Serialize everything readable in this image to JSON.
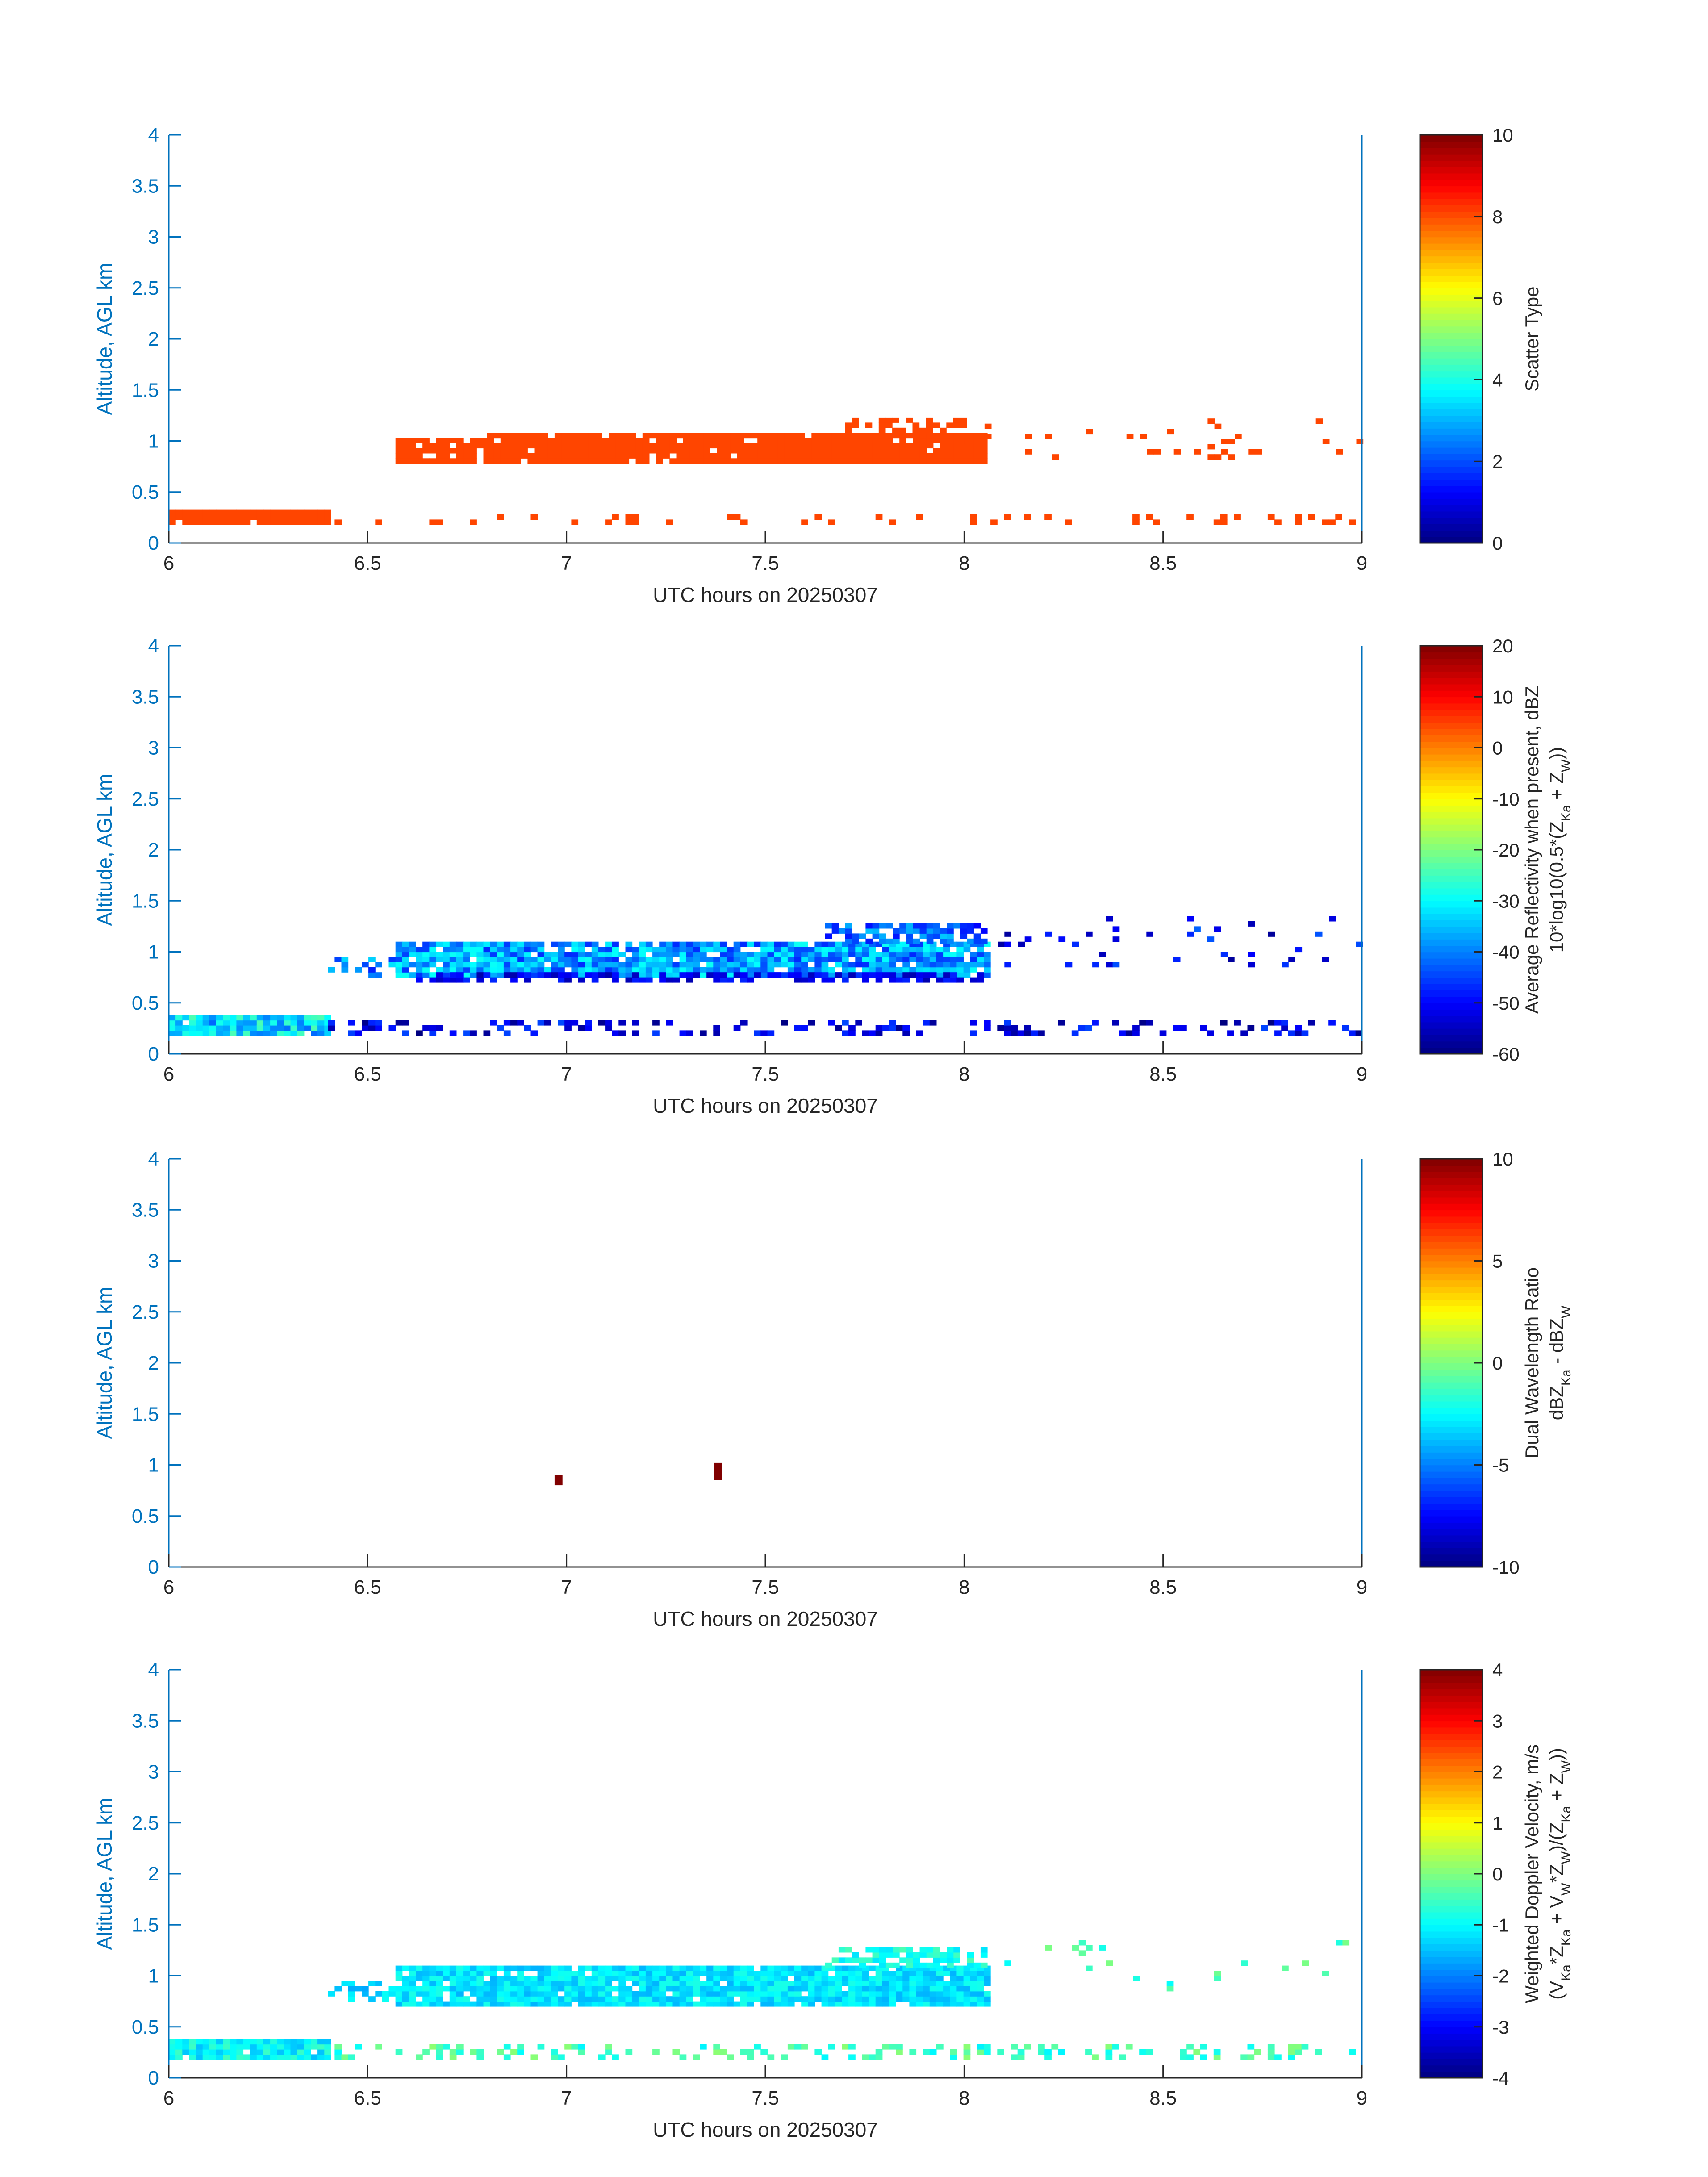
{
  "colors": {
    "axis_blue": "#0072bd",
    "text_dark": "#262626",
    "scatter_orange": "#ff4500",
    "dwr_darkred": "#800000"
  },
  "chart_data": [
    {
      "type": "heatmap",
      "xlabel": "UTC hours on 20250307",
      "ylabel": "Altitude, AGL km",
      "xlim": [
        6,
        9
      ],
      "ylim": [
        0,
        4
      ],
      "xticks": [
        "6",
        "6.5",
        "7",
        "7.5",
        "8",
        "8.5",
        "9"
      ],
      "yticks": [
        "0",
        "0.5",
        "1",
        "1.5",
        "2",
        "2.5",
        "3",
        "3.5",
        "4"
      ],
      "colorbar": {
        "label_lines": [
          "Scatter Type"
        ],
        "lim": [
          0,
          10
        ],
        "ticks": [
          "0",
          "2",
          "4",
          "6",
          "8",
          "10"
        ]
      },
      "layers": [
        {
          "x0": 6.0,
          "x1": 6.4,
          "ylow": 0.18,
          "yhigh": 0.32,
          "value": 8,
          "density": 0.95
        },
        {
          "x0": 6.4,
          "x1": 9.0,
          "ylow": 0.18,
          "yhigh": 0.28,
          "value": 8,
          "density": 0.18
        },
        {
          "x0": 6.57,
          "x1": 6.8,
          "ylow": 0.78,
          "yhigh": 1.0,
          "value": 8,
          "density": 0.85
        },
        {
          "x0": 6.8,
          "x1": 8.05,
          "ylow": 0.78,
          "yhigh": 1.08,
          "value": 8,
          "density": 0.93
        },
        {
          "x0": 7.7,
          "x1": 8.0,
          "ylow": 1.08,
          "yhigh": 1.2,
          "value": 8,
          "density": 0.6
        },
        {
          "x0": 8.0,
          "x1": 9.0,
          "ylow": 0.82,
          "yhigh": 1.2,
          "value": 8,
          "density": 0.05
        }
      ]
    },
    {
      "type": "heatmap",
      "xlabel": "UTC hours on 20250307",
      "ylabel": "Altitude, AGL km",
      "xlim": [
        6,
        9
      ],
      "ylim": [
        0,
        4
      ],
      "xticks": [
        "6",
        "6.5",
        "7",
        "7.5",
        "8",
        "8.5",
        "9"
      ],
      "yticks": [
        "0",
        "0.5",
        "1",
        "1.5",
        "2",
        "2.5",
        "3",
        "3.5",
        "4"
      ],
      "colorbar": {
        "label_lines": [
          "Average Reflectivity when present, dBZ",
          "10*log10(0.5*(Z",
          "Ka",
          " + Z",
          "W",
          "))"
        ],
        "lim": [
          -60,
          20
        ],
        "ticks": [
          "-60",
          "-50",
          "-40",
          "-30",
          "-20",
          "-10",
          "0",
          "10",
          "20"
        ]
      },
      "layers": [
        {
          "x0": 6.0,
          "x1": 6.4,
          "ylow": 0.18,
          "yhigh": 0.35,
          "value": -33,
          "spread": 9,
          "density": 0.95
        },
        {
          "x0": 6.4,
          "x1": 9.0,
          "ylow": 0.18,
          "yhigh": 0.32,
          "value": -52,
          "spread": 8,
          "density": 0.3
        },
        {
          "x0": 6.4,
          "x1": 6.6,
          "ylow": 0.75,
          "yhigh": 0.95,
          "value": -40,
          "spread": 8,
          "density": 0.35
        },
        {
          "x0": 6.57,
          "x1": 8.05,
          "ylow": 0.75,
          "yhigh": 1.08,
          "value": -38,
          "spread": 9,
          "density": 0.93
        },
        {
          "x0": 6.57,
          "x1": 8.05,
          "ylow": 0.7,
          "yhigh": 0.78,
          "value": -52,
          "spread": 5,
          "density": 0.55
        },
        {
          "x0": 7.65,
          "x1": 8.05,
          "ylow": 1.08,
          "yhigh": 1.25,
          "value": -42,
          "spread": 8,
          "density": 0.6
        },
        {
          "x0": 8.05,
          "x1": 9.0,
          "ylow": 0.85,
          "yhigh": 1.35,
          "value": -50,
          "spread": 8,
          "density": 0.05
        }
      ]
    },
    {
      "type": "heatmap",
      "xlabel": "UTC hours on 20250307",
      "ylabel": "Altitude, AGL km",
      "xlim": [
        6,
        9
      ],
      "ylim": [
        0,
        4
      ],
      "xticks": [
        "6",
        "6.5",
        "7",
        "7.5",
        "8",
        "8.5",
        "9"
      ],
      "yticks": [
        "0",
        "0.5",
        "1",
        "1.5",
        "2",
        "2.5",
        "3",
        "3.5",
        "4"
      ],
      "colorbar": {
        "label_lines": [
          "Dual Wavelength Ratio",
          "dBZ",
          "Ka",
          " - dBZ",
          "W"
        ],
        "lim": [
          -10,
          10
        ],
        "ticks": [
          "-10",
          "-5",
          "0",
          "5",
          "10"
        ]
      },
      "cells": [
        {
          "x": 6.97,
          "y": 0.8,
          "w": 0.02,
          "h": 0.1,
          "value": 10
        },
        {
          "x": 7.37,
          "y": 0.85,
          "w": 0.02,
          "h": 0.17,
          "value": 10
        }
      ]
    },
    {
      "type": "heatmap",
      "xlabel": "UTC hours on 20250307",
      "ylabel": "Altitude, AGL km",
      "xlim": [
        6,
        9
      ],
      "ylim": [
        0,
        4
      ],
      "xticks": [
        "6",
        "6.5",
        "7",
        "7.5",
        "8",
        "8.5",
        "9"
      ],
      "yticks": [
        "0",
        "0.5",
        "1",
        "1.5",
        "2",
        "2.5",
        "3",
        "3.5",
        "4"
      ],
      "colorbar": {
        "label_lines": [
          "Weighted Doppler Velocity, m/s",
          "(V",
          "Ka",
          "*Z",
          "Ka",
          " + V",
          "W",
          "*Z",
          "W",
          ")/(Z",
          "Ka",
          " + Z",
          "W",
          "))"
        ],
        "lim": [
          -4,
          4
        ],
        "ticks": [
          "-4",
          "-3",
          "-2",
          "-1",
          "0",
          "1",
          "2",
          "3",
          "4"
        ]
      },
      "layers": [
        {
          "x0": 6.0,
          "x1": 6.4,
          "ylow": 0.18,
          "yhigh": 0.35,
          "value": -1.0,
          "spread": 0.5,
          "density": 0.95
        },
        {
          "x0": 6.4,
          "x1": 9.0,
          "ylow": 0.18,
          "yhigh": 0.32,
          "value": -0.5,
          "spread": 0.6,
          "density": 0.3
        },
        {
          "x0": 6.4,
          "x1": 6.6,
          "ylow": 0.75,
          "yhigh": 0.95,
          "value": -1.3,
          "spread": 0.4,
          "density": 0.35
        },
        {
          "x0": 6.57,
          "x1": 8.05,
          "ylow": 0.7,
          "yhigh": 1.08,
          "value": -1.2,
          "spread": 0.4,
          "density": 0.93
        },
        {
          "x0": 7.65,
          "x1": 8.05,
          "ylow": 1.08,
          "yhigh": 1.25,
          "value": -0.8,
          "spread": 0.4,
          "density": 0.6
        },
        {
          "x0": 8.05,
          "x1": 9.0,
          "ylow": 0.85,
          "yhigh": 1.35,
          "value": -0.5,
          "spread": 0.5,
          "density": 0.05
        }
      ]
    }
  ]
}
